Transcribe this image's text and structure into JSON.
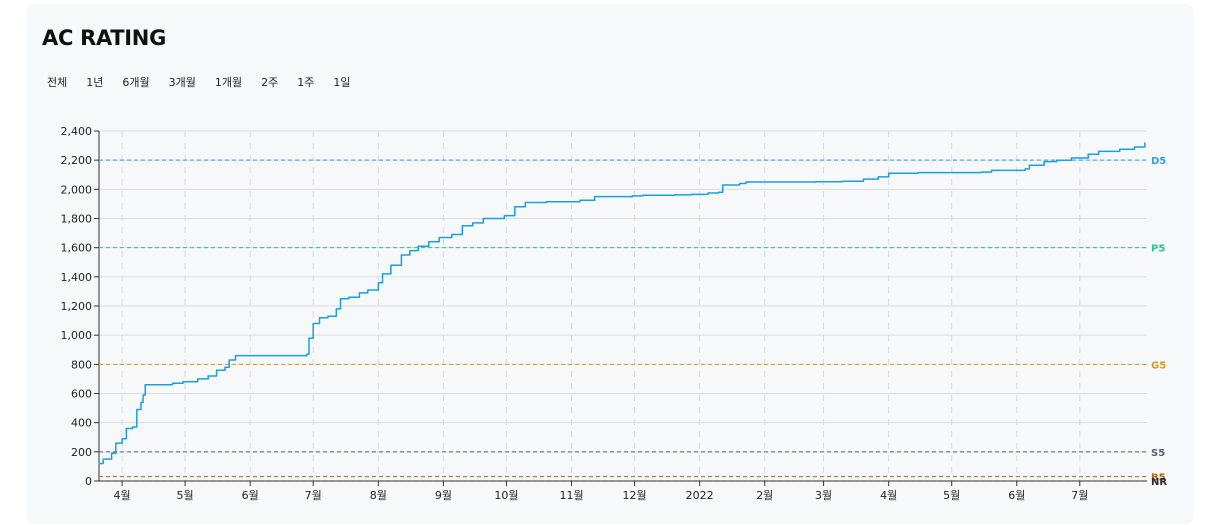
{
  "title": "AC RATING",
  "ranges": [
    "전체",
    "1년",
    "6개월",
    "3개월",
    "1개월",
    "2주",
    "1주",
    "1일"
  ],
  "colors": {
    "line": "#1a9fe0",
    "grid": "#dcdde0",
    "vgrid": "#d8d9dc"
  },
  "chart_data": {
    "type": "line",
    "ylim": [
      0,
      2400
    ],
    "y_ticks": [
      0,
      200,
      400,
      600,
      800,
      1000,
      1200,
      1400,
      1600,
      1800,
      2000,
      2200,
      2400
    ],
    "y_tick_labels": [
      "0",
      "200",
      "400",
      "600",
      "800",
      "1,000",
      "1,200",
      "1,400",
      "1,600",
      "1,800",
      "2,000",
      "2,200",
      "2,400"
    ],
    "x_start": "2021-03-21",
    "x_end": "2022-08-02",
    "x_ticks": [
      {
        "date": "2021-04-01",
        "label": "4월"
      },
      {
        "date": "2021-05-01",
        "label": "5월"
      },
      {
        "date": "2021-06-01",
        "label": "6월"
      },
      {
        "date": "2021-07-01",
        "label": "7월"
      },
      {
        "date": "2021-08-01",
        "label": "8월"
      },
      {
        "date": "2021-09-01",
        "label": "9월"
      },
      {
        "date": "2021-10-01",
        "label": "10월"
      },
      {
        "date": "2021-11-01",
        "label": "11월"
      },
      {
        "date": "2021-12-01",
        "label": "12월"
      },
      {
        "date": "2022-01-01",
        "label": "2022"
      },
      {
        "date": "2022-02-01",
        "label": "2월"
      },
      {
        "date": "2022-03-01",
        "label": "3월"
      },
      {
        "date": "2022-04-01",
        "label": "4월"
      },
      {
        "date": "2022-05-01",
        "label": "5월"
      },
      {
        "date": "2022-06-01",
        "label": "6월"
      },
      {
        "date": "2022-07-01",
        "label": "7월"
      }
    ],
    "tiers": [
      {
        "label": "D5",
        "value": 2200,
        "color": "#2fa3dc"
      },
      {
        "label": "P5",
        "value": 1600,
        "color": "#27c58d"
      },
      {
        "label": "G5",
        "value": 800,
        "color": "#d89a1e"
      },
      {
        "label": "S5",
        "value": 200,
        "color": "#4f6478"
      },
      {
        "label": "B5",
        "value": 30,
        "color": "#b0641c"
      },
      {
        "label": "NR",
        "value": 0,
        "color": "#2b2b2b"
      }
    ],
    "series": [
      {
        "points": [
          [
            "2021-03-21",
            120
          ],
          [
            "2021-03-23",
            150
          ],
          [
            "2021-03-27",
            190
          ],
          [
            "2021-03-29",
            260
          ],
          [
            "2021-04-01",
            290
          ],
          [
            "2021-04-03",
            360
          ],
          [
            "2021-04-06",
            370
          ],
          [
            "2021-04-08",
            490
          ],
          [
            "2021-04-10",
            540
          ],
          [
            "2021-04-11",
            590
          ],
          [
            "2021-04-12",
            660
          ],
          [
            "2021-04-25",
            670
          ],
          [
            "2021-04-30",
            680
          ],
          [
            "2021-05-07",
            700
          ],
          [
            "2021-05-12",
            720
          ],
          [
            "2021-05-16",
            760
          ],
          [
            "2021-05-20",
            780
          ],
          [
            "2021-05-22",
            830
          ],
          [
            "2021-05-25",
            860
          ],
          [
            "2021-06-28",
            870
          ],
          [
            "2021-06-29",
            980
          ],
          [
            "2021-07-01",
            1080
          ],
          [
            "2021-07-04",
            1120
          ],
          [
            "2021-07-08",
            1130
          ],
          [
            "2021-07-12",
            1180
          ],
          [
            "2021-07-14",
            1250
          ],
          [
            "2021-07-18",
            1260
          ],
          [
            "2021-07-23",
            1290
          ],
          [
            "2021-07-27",
            1310
          ],
          [
            "2021-08-01",
            1360
          ],
          [
            "2021-08-03",
            1420
          ],
          [
            "2021-08-07",
            1480
          ],
          [
            "2021-08-12",
            1550
          ],
          [
            "2021-08-16",
            1580
          ],
          [
            "2021-08-20",
            1610
          ],
          [
            "2021-08-25",
            1640
          ],
          [
            "2021-08-30",
            1670
          ],
          [
            "2021-09-05",
            1690
          ],
          [
            "2021-09-10",
            1750
          ],
          [
            "2021-09-15",
            1770
          ],
          [
            "2021-09-20",
            1800
          ],
          [
            "2021-09-30",
            1820
          ],
          [
            "2021-10-05",
            1880
          ],
          [
            "2021-10-10",
            1910
          ],
          [
            "2021-10-20",
            1915
          ],
          [
            "2021-11-05",
            1925
          ],
          [
            "2021-11-12",
            1950
          ],
          [
            "2021-11-30",
            1955
          ],
          [
            "2021-12-05",
            1960
          ],
          [
            "2021-12-20",
            1962
          ],
          [
            "2021-12-28",
            1965
          ],
          [
            "2022-01-05",
            1975
          ],
          [
            "2022-01-10",
            1980
          ],
          [
            "2022-01-12",
            2030
          ],
          [
            "2022-01-20",
            2040
          ],
          [
            "2022-01-23",
            2050
          ],
          [
            "2022-02-25",
            2052
          ],
          [
            "2022-03-10",
            2055
          ],
          [
            "2022-03-20",
            2070
          ],
          [
            "2022-03-27",
            2085
          ],
          [
            "2022-04-01",
            2110
          ],
          [
            "2022-04-15",
            2115
          ],
          [
            "2022-05-15",
            2118
          ],
          [
            "2022-05-20",
            2130
          ],
          [
            "2022-06-05",
            2140
          ],
          [
            "2022-06-07",
            2165
          ],
          [
            "2022-06-14",
            2190
          ],
          [
            "2022-06-20",
            2200
          ],
          [
            "2022-06-27",
            2215
          ],
          [
            "2022-07-05",
            2240
          ],
          [
            "2022-07-10",
            2260
          ],
          [
            "2022-07-20",
            2275
          ],
          [
            "2022-07-27",
            2290
          ],
          [
            "2022-08-01",
            2320
          ]
        ]
      }
    ]
  }
}
